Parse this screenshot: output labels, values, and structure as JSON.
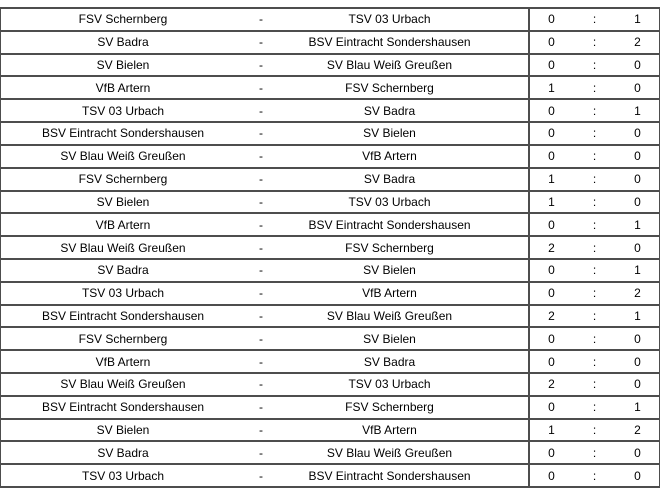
{
  "page": {
    "background_color": "#ffffff",
    "border_color": "#4d4d4d",
    "text_color": "#000000"
  },
  "results_table": {
    "separator": "-",
    "score_separator": ":",
    "matches": [
      {
        "home": "FSV Schernberg",
        "away": "TSV 03 Urbach",
        "home_score": "0",
        "away_score": "1"
      },
      {
        "home": "SV Badra",
        "away": "BSV Eintracht Sondershausen",
        "home_score": "0",
        "away_score": "2"
      },
      {
        "home": "SV Bielen",
        "away": "SV Blau Weiß Greußen",
        "home_score": "0",
        "away_score": "0"
      },
      {
        "home": "VfB Artern",
        "away": "FSV Schernberg",
        "home_score": "1",
        "away_score": "0"
      },
      {
        "home": "TSV 03 Urbach",
        "away": "SV Badra",
        "home_score": "0",
        "away_score": "1"
      },
      {
        "home": "BSV Eintracht Sondershausen",
        "away": "SV Bielen",
        "home_score": "0",
        "away_score": "0"
      },
      {
        "home": "SV Blau Weiß Greußen",
        "away": "VfB Artern",
        "home_score": "0",
        "away_score": "0"
      },
      {
        "home": "FSV Schernberg",
        "away": "SV Badra",
        "home_score": "1",
        "away_score": "0"
      },
      {
        "home": "SV Bielen",
        "away": "TSV 03 Urbach",
        "home_score": "1",
        "away_score": "0"
      },
      {
        "home": "VfB Artern",
        "away": "BSV Eintracht Sondershausen",
        "home_score": "0",
        "away_score": "1"
      },
      {
        "home": "SV Blau Weiß Greußen",
        "away": "FSV Schernberg",
        "home_score": "2",
        "away_score": "0"
      },
      {
        "home": "SV Badra",
        "away": "SV Bielen",
        "home_score": "0",
        "away_score": "1"
      },
      {
        "home": "TSV 03 Urbach",
        "away": "VfB Artern",
        "home_score": "0",
        "away_score": "2"
      },
      {
        "home": "BSV Eintracht Sondershausen",
        "away": "SV Blau Weiß Greußen",
        "home_score": "2",
        "away_score": "1"
      },
      {
        "home": "FSV Schernberg",
        "away": "SV Bielen",
        "home_score": "0",
        "away_score": "0"
      },
      {
        "home": "VfB Artern",
        "away": "SV Badra",
        "home_score": "0",
        "away_score": "0"
      },
      {
        "home": "SV Blau Weiß Greußen",
        "away": "TSV 03 Urbach",
        "home_score": "2",
        "away_score": "0"
      },
      {
        "home": "BSV Eintracht Sondershausen",
        "away": "FSV Schernberg",
        "home_score": "0",
        "away_score": "1"
      },
      {
        "home": "SV Bielen",
        "away": "VfB Artern",
        "home_score": "1",
        "away_score": "2"
      },
      {
        "home": "SV Badra",
        "away": "SV Blau Weiß Greußen",
        "home_score": "0",
        "away_score": "0"
      },
      {
        "home": "TSV 03 Urbach",
        "away": "BSV Eintracht Sondershausen",
        "home_score": "0",
        "away_score": "0"
      }
    ]
  }
}
